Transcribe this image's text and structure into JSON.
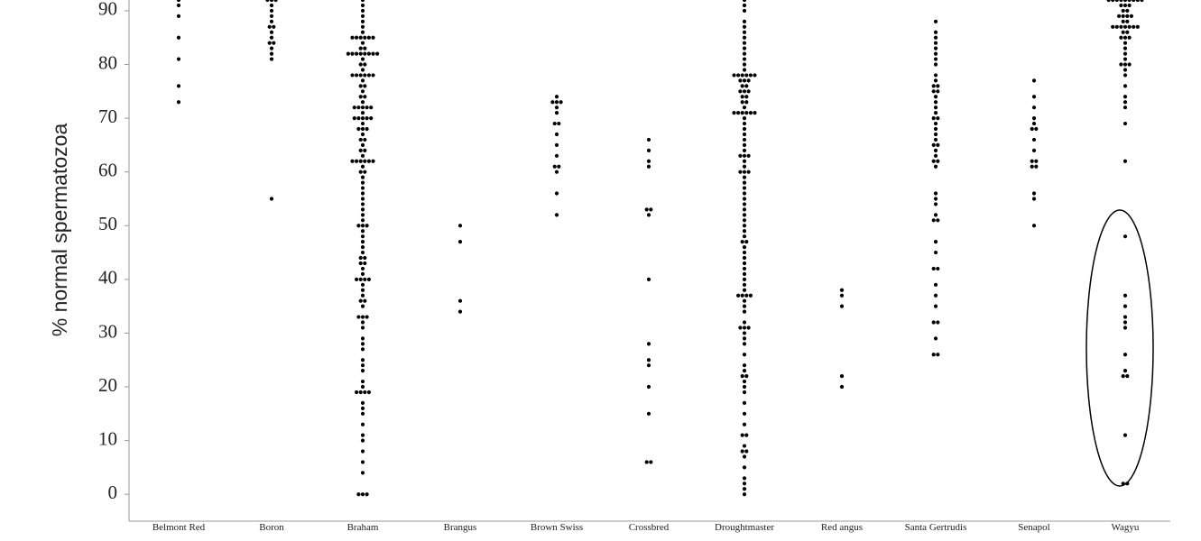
{
  "chart_data": {
    "type": "dot",
    "y_label": "% normal spermatozoa",
    "color": "#000000",
    "categories": [
      "Belmont Red",
      "Boron",
      "Braham",
      "Brangus",
      "Brown Swiss",
      "Crossbred",
      "Droughtmaster",
      "Red angus",
      "Santa Gertrudis",
      "Senapol",
      "Wagyu"
    ],
    "values": [
      [
        73,
        76,
        81,
        85,
        89,
        91,
        92
      ],
      [
        55,
        81,
        82,
        83,
        84,
        84,
        85,
        86,
        87,
        87,
        88,
        89,
        90,
        91,
        92,
        92,
        92
      ],
      [
        0,
        0,
        0,
        4,
        6,
        8,
        10,
        11,
        13,
        15,
        16,
        17,
        19,
        19,
        19,
        19,
        20,
        21,
        23,
        24,
        25,
        27,
        28,
        29,
        31,
        32,
        33,
        33,
        33,
        35,
        36,
        36,
        37,
        38,
        39,
        40,
        40,
        40,
        40,
        41,
        42,
        43,
        43,
        44,
        44,
        45,
        46,
        47,
        48,
        49,
        50,
        50,
        50,
        51,
        52,
        53,
        54,
        55,
        56,
        57,
        58,
        59,
        60,
        60,
        61,
        62,
        62,
        62,
        62,
        62,
        62,
        63,
        64,
        64,
        65,
        66,
        66,
        67,
        68,
        68,
        68,
        69,
        70,
        70,
        70,
        70,
        70,
        71,
        72,
        72,
        72,
        72,
        72,
        73,
        74,
        74,
        75,
        76,
        76,
        77,
        78,
        78,
        78,
        78,
        78,
        78,
        79,
        80,
        80,
        81,
        82,
        82,
        82,
        82,
        82,
        82,
        82,
        82,
        83,
        83,
        84,
        85,
        85,
        85,
        85,
        85,
        85,
        86,
        87,
        88,
        89,
        90,
        91,
        92
      ],
      [
        34,
        36,
        47,
        50
      ],
      [
        52,
        56,
        60,
        61,
        61,
        63,
        65,
        67,
        69,
        69,
        71,
        72,
        73,
        73,
        73,
        74
      ],
      [
        6,
        6,
        15,
        20,
        24,
        25,
        28,
        40,
        52,
        53,
        53,
        61,
        62,
        64,
        66
      ],
      [
        0,
        1,
        2,
        3,
        5,
        7,
        8,
        8,
        9,
        11,
        11,
        13,
        15,
        17,
        19,
        20,
        21,
        22,
        22,
        23,
        24,
        26,
        28,
        29,
        30,
        31,
        31,
        31,
        32,
        34,
        35,
        36,
        37,
        37,
        37,
        37,
        38,
        39,
        40,
        41,
        42,
        43,
        44,
        45,
        46,
        47,
        47,
        48,
        49,
        50,
        51,
        52,
        53,
        54,
        55,
        56,
        57,
        58,
        59,
        60,
        60,
        60,
        61,
        62,
        63,
        63,
        63,
        64,
        65,
        66,
        67,
        68,
        69,
        70,
        71,
        71,
        71,
        71,
        71,
        71,
        72,
        73,
        73,
        74,
        74,
        75,
        75,
        75,
        76,
        76,
        77,
        77,
        77,
        78,
        78,
        78,
        78,
        78,
        78,
        79,
        80,
        81,
        82,
        83,
        84,
        85,
        86,
        87,
        88,
        90,
        91,
        92
      ],
      [
        20,
        22,
        35,
        37,
        38
      ],
      [
        26,
        26,
        29,
        32,
        32,
        35,
        37,
        39,
        42,
        42,
        45,
        47,
        51,
        51,
        52,
        54,
        55,
        56,
        61,
        62,
        62,
        63,
        64,
        65,
        65,
        66,
        67,
        68,
        69,
        70,
        70,
        71,
        72,
        73,
        74,
        75,
        75,
        76,
        76,
        77,
        78,
        80,
        81,
        82,
        83,
        84,
        85,
        86,
        88
      ],
      [
        50,
        55,
        56,
        61,
        61,
        62,
        62,
        64,
        66,
        68,
        68,
        69,
        70,
        72,
        74,
        77
      ],
      [
        2,
        2,
        11,
        22,
        22,
        23,
        26,
        31,
        32,
        33,
        35,
        37,
        48,
        62,
        69,
        72,
        73,
        74,
        76,
        78,
        79,
        80,
        80,
        80,
        81,
        82,
        83,
        84,
        85,
        85,
        85,
        86,
        86,
        87,
        87,
        87,
        87,
        87,
        87,
        87,
        88,
        88,
        89,
        89,
        89,
        89,
        90,
        90,
        91,
        91,
        91,
        92,
        92,
        92,
        92,
        92,
        92,
        92,
        92,
        92
      ]
    ],
    "ylim": [
      -5,
      92
    ],
    "yticks": [
      0,
      10,
      20,
      30,
      40,
      50,
      60,
      70,
      80,
      90
    ]
  }
}
